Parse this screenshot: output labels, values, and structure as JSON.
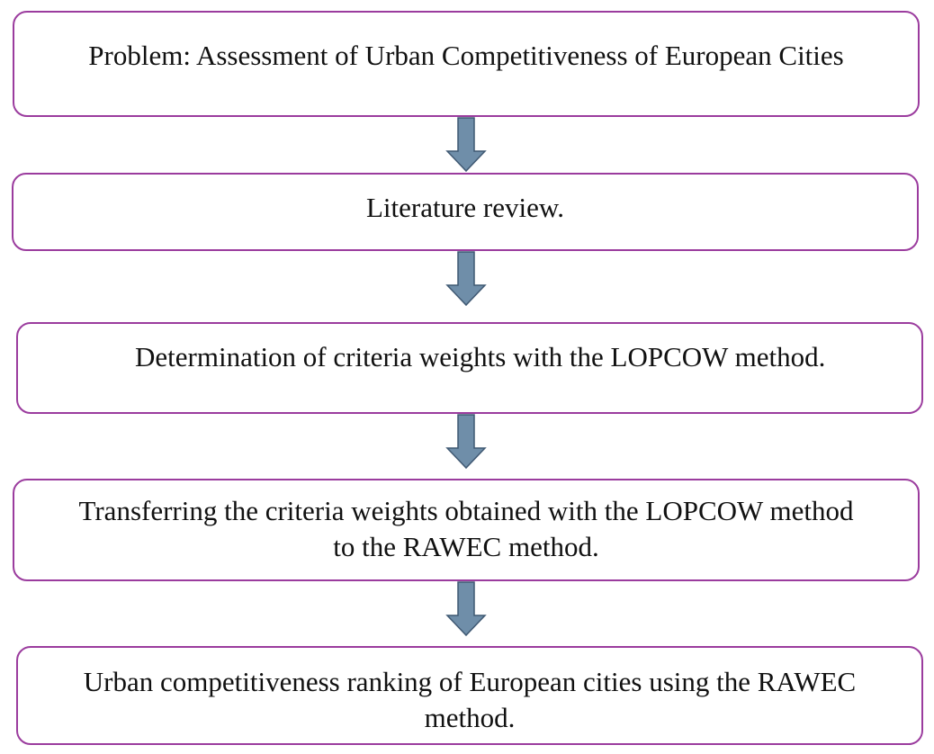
{
  "colors": {
    "box_border": "#9b3c9e",
    "arrow_fill": "#6f8ea9",
    "arrow_stroke": "#3f5872"
  },
  "steps": [
    {
      "text": "Problem: Assessment of Urban Competitiveness of European Cities"
    },
    {
      "text": "Literature review."
    },
    {
      "text": "Determination of criteria weights with the LOPCOW method."
    },
    {
      "line1": "Transferring the criteria weights obtained with the LOPCOW method",
      "line2": "to the RAWEC method."
    },
    {
      "line1": "Urban competitiveness ranking of European cities using the RAWEC",
      "line2": "method."
    }
  ]
}
